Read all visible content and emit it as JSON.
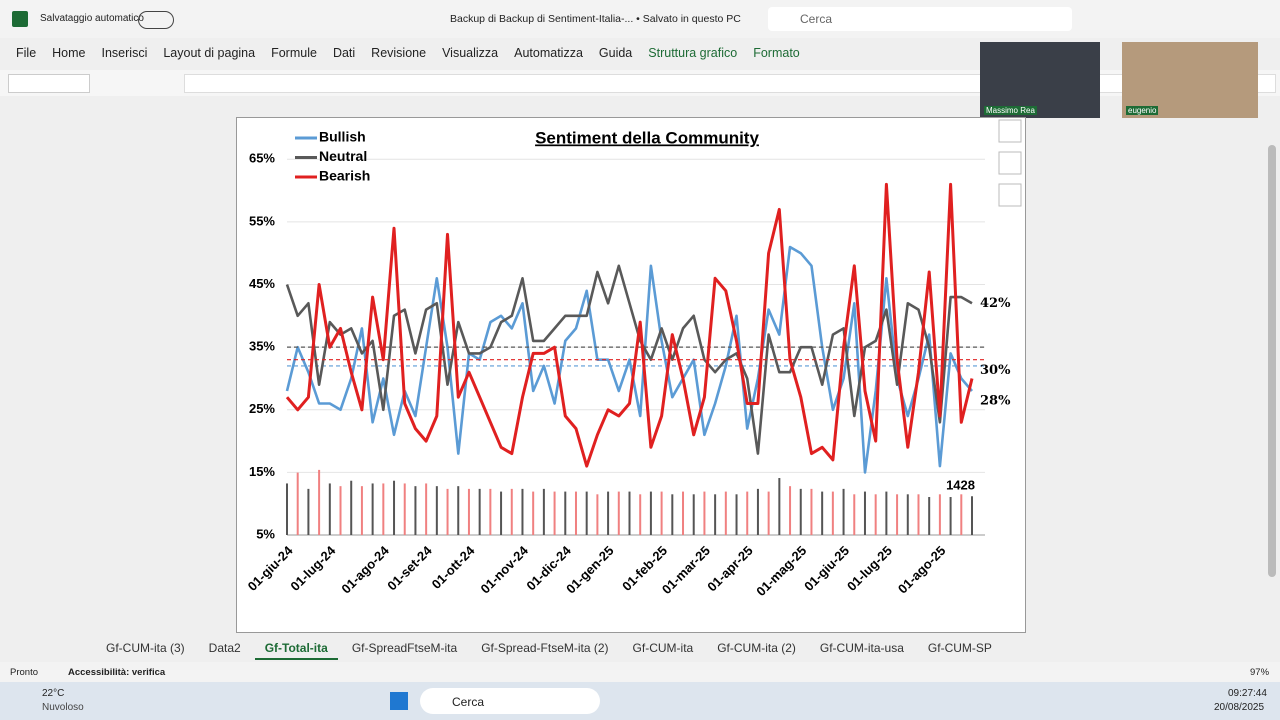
{
  "titlebar": {
    "autosave": "Salvataggio automatico",
    "document": "Backup di Backup di Sentiment-Italia-... • Salvato in questo PC",
    "search": "Cerca"
  },
  "menu": [
    "File",
    "Home",
    "Inserisci",
    "Layout di pagina",
    "Formule",
    "Dati",
    "Revisione",
    "Visualizza",
    "Automatizza",
    "Guida",
    "Struttura grafico",
    "Formato"
  ],
  "participants": [
    "Massimo Rea",
    "eugenio"
  ],
  "sheet_tabs": [
    "Gf-CUM-ita (3)",
    "Data2",
    "Gf-Total-ita",
    "Gf-SpreadFtseM-ita",
    "Gf-Spread-FtseM-ita (2)",
    "Gf-CUM-ita",
    "Gf-CUM-ita (2)",
    "Gf-CUM-ita-usa",
    "Gf-CUM-SP"
  ],
  "active_tab": 2,
  "status": {
    "ready": "Pronto",
    "accessibility": "Accessibilità: verifica",
    "zoom": "97%"
  },
  "taskbar": {
    "temperature": "22°C",
    "weather": "Nuvoloso",
    "search": "Cerca",
    "time": "09:27:44",
    "date": "20/08/2025"
  },
  "chart_data": {
    "type": "line",
    "title": "Sentiment della Community",
    "categories": [
      "01-giu-24",
      null,
      null,
      null,
      "01-lug-24",
      null,
      null,
      null,
      null,
      "01-ago-24",
      null,
      null,
      null,
      "01-set-24",
      null,
      null,
      null,
      "01-ott-24",
      null,
      null,
      null,
      null,
      "01-nov-24",
      null,
      null,
      null,
      "01-dic-24",
      null,
      null,
      null,
      "01-gen-25",
      null,
      null,
      null,
      null,
      "01-feb-25",
      null,
      null,
      null,
      "01-mar-25",
      null,
      null,
      null,
      "01-apr-25",
      null,
      null,
      null,
      null,
      "01-mag-25",
      null,
      null,
      null,
      "01-giu-25",
      null,
      null,
      null,
      "01-lug-25",
      null,
      null,
      null,
      null,
      "01-ago-25",
      null,
      null,
      null
    ],
    "series": [
      {
        "name": "Bullish",
        "color": "#5b9bd5",
        "average": 32,
        "end_label": "28%",
        "values": [
          28,
          35,
          31,
          26,
          26,
          25,
          30,
          38,
          23,
          30,
          21,
          28,
          24,
          35,
          46,
          35,
          18,
          34,
          33,
          39,
          40,
          38,
          42,
          28,
          32,
          26,
          36,
          38,
          44,
          33,
          33,
          28,
          33,
          24,
          48,
          36,
          27,
          30,
          33,
          21,
          26,
          32,
          40,
          22,
          30,
          41,
          37,
          51,
          50,
          48,
          35,
          25,
          30,
          42,
          15,
          28,
          46,
          30,
          24,
          30,
          37,
          16,
          34,
          30,
          28
        ]
      },
      {
        "name": "Neutral",
        "color": "#595959",
        "average": 35,
        "end_label": "42%",
        "values": [
          45,
          40,
          42,
          29,
          39,
          37,
          38,
          34,
          36,
          25,
          40,
          41,
          34,
          41,
          42,
          29,
          39,
          34,
          34,
          35,
          39,
          40,
          46,
          36,
          36,
          38,
          40,
          40,
          40,
          47,
          42,
          48,
          42,
          36,
          33,
          38,
          33,
          38,
          40,
          33,
          31,
          33,
          34,
          30,
          18,
          37,
          31,
          31,
          35,
          35,
          29,
          37,
          38,
          24,
          35,
          36,
          41,
          29,
          42,
          41,
          35,
          23,
          43,
          43,
          42
        ]
      },
      {
        "name": "Bearish",
        "color": "#e02020",
        "average": 33,
        "end_label": "30%",
        "values": [
          27,
          25,
          27,
          45,
          35,
          38,
          31,
          25,
          43,
          33,
          54,
          26,
          22,
          20,
          24,
          53,
          27,
          31,
          27,
          23,
          19,
          18,
          27,
          34,
          34,
          35,
          24,
          22,
          16,
          21,
          25,
          24,
          26,
          39,
          19,
          24,
          37,
          30,
          21,
          27,
          46,
          44,
          36,
          26,
          26,
          50,
          57,
          33,
          27,
          18,
          19,
          17,
          35,
          48,
          28,
          20,
          61,
          33,
          19,
          31,
          47,
          24,
          61,
          23,
          30
        ]
      }
    ],
    "volume": {
      "colors": [
        "#555555",
        "#f08080"
      ],
      "axis": "y2",
      "values": [
        1900,
        2300,
        1700,
        2400,
        1900,
        1800,
        2000,
        1800,
        1900,
        1900,
        2000,
        1900,
        1800,
        1900,
        1800,
        1700,
        1800,
        1700,
        1700,
        1700,
        1600,
        1700,
        1700,
        1600,
        1700,
        1600,
        1600,
        1600,
        1600,
        1500,
        1600,
        1600,
        1600,
        1500,
        1600,
        1600,
        1500,
        1600,
        1500,
        1600,
        1500,
        1600,
        1500,
        1600,
        1700,
        1600,
        2100,
        1800,
        1700,
        1700,
        1600,
        1600,
        1700,
        1500,
        1600,
        1500,
        1600,
        1500,
        1500,
        1500,
        1400,
        1500,
        1400,
        1500,
        1428
      ]
    },
    "ylim": [
      5,
      70
    ],
    "yticks": [
      {
        "value": 5,
        "label": "5%"
      },
      {
        "value": 15,
        "label": "15%"
      },
      {
        "value": 25,
        "label": "25%"
      },
      {
        "value": 35,
        "label": "35%"
      },
      {
        "value": 45,
        "label": "45%"
      },
      {
        "value": 55,
        "label": "55%"
      },
      {
        "value": 65,
        "label": "65%"
      }
    ],
    "y2lim": [
      0,
      15000
    ],
    "grid": true,
    "legend": "top-left"
  }
}
